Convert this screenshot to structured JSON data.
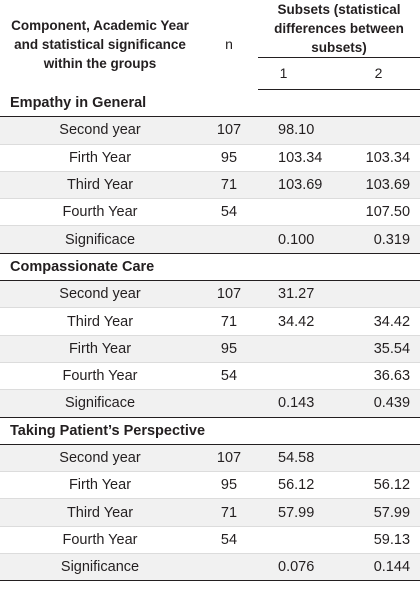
{
  "header": {
    "label": "Component, Academic Year and statistical significance within the groups",
    "n": "n",
    "subsets": "Subsets (statistical differences between subsets)",
    "subset1": "1",
    "subset2": "2"
  },
  "sections": [
    {
      "title": "Empathy in General",
      "rows": [
        {
          "label": "Second year",
          "n": "107",
          "s1": "98.10",
          "s2": ""
        },
        {
          "label": "Firth Year",
          "n": "95",
          "s1": "103.34",
          "s2": "103.34"
        },
        {
          "label": "Third Year",
          "n": "71",
          "s1": "103.69",
          "s2": "103.69"
        },
        {
          "label": "Fourth Year",
          "n": "54",
          "s1": "",
          "s2": "107.50"
        },
        {
          "label": "Significace",
          "n": "",
          "s1": "0.100",
          "s2": "0.319"
        }
      ]
    },
    {
      "title": "Compassionate Care",
      "rows": [
        {
          "label": "Second year",
          "n": "107",
          "s1": "31.27",
          "s2": ""
        },
        {
          "label": "Third Year",
          "n": "71",
          "s1": "34.42",
          "s2": "34.42"
        },
        {
          "label": "Firth Year",
          "n": "95",
          "s1": "",
          "s2": "35.54"
        },
        {
          "label": "Fourth Year",
          "n": "54",
          "s1": "",
          "s2": "36.63"
        },
        {
          "label": "Significace",
          "n": "",
          "s1": "0.143",
          "s2": "0.439"
        }
      ]
    },
    {
      "title": "Taking Patient’s Perspective",
      "rows": [
        {
          "label": "Second year",
          "n": "107",
          "s1": "54.58",
          "s2": ""
        },
        {
          "label": "Firth Year",
          "n": "95",
          "s1": "56.12",
          "s2": "56.12"
        },
        {
          "label": "Third Year",
          "n": "71",
          "s1": "57.99",
          "s2": "57.99"
        },
        {
          "label": "Fourth Year",
          "n": "54",
          "s1": "",
          "s2": "59.13"
        },
        {
          "label": "Significance",
          "n": "",
          "s1": "0.076",
          "s2": "0.144"
        }
      ]
    }
  ]
}
